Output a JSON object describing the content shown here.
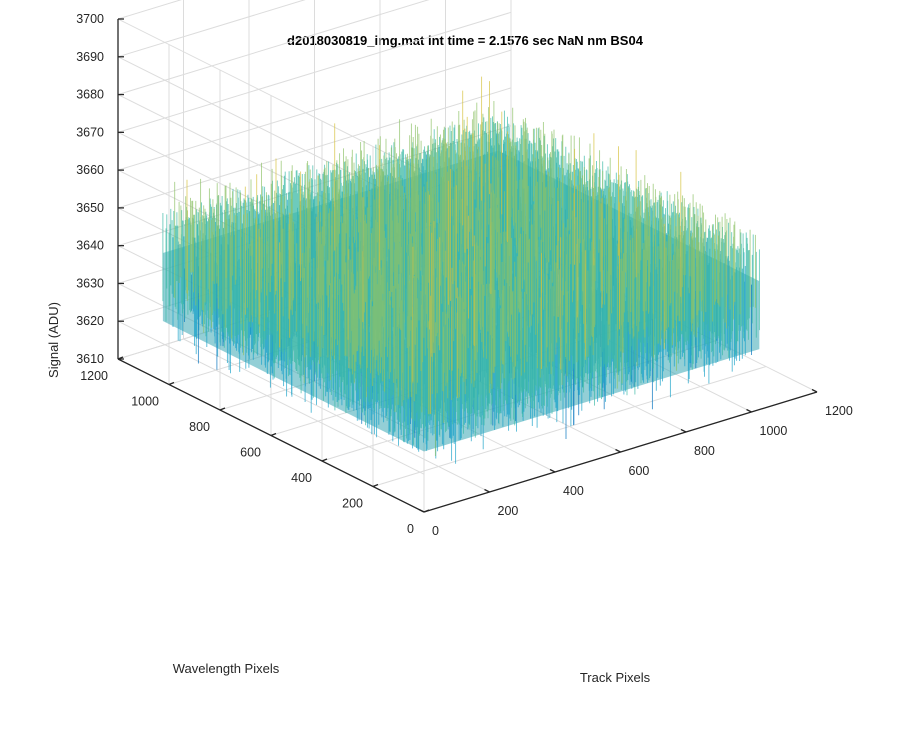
{
  "chart_data": {
    "type": "surface",
    "title": "d2018030819_img.mat int time = 2.1576 sec  NaN nm BS04",
    "xlabel": "Track Pixels",
    "ylabel": "Wavelength Pixels",
    "zlabel": "Signal (ADU)",
    "xlim": [
      0,
      1200
    ],
    "ylim": [
      0,
      1200
    ],
    "zlim": [
      3610,
      3700
    ],
    "xticks": [
      0,
      200,
      400,
      600,
      800,
      1000,
      1200
    ],
    "yticks": [
      0,
      200,
      400,
      600,
      800,
      1000,
      1200
    ],
    "zticks": [
      3610,
      3620,
      3630,
      3640,
      3650,
      3660,
      3670,
      3680,
      3690,
      3700
    ],
    "xtick_labels": [
      "0",
      "200",
      "400",
      "600",
      "800",
      "1000",
      "1200"
    ],
    "ytick_labels": [
      "0",
      "200",
      "400",
      "600",
      "800",
      "1000",
      "1200"
    ],
    "ztick_labels": [
      "3610",
      "3620",
      "3630",
      "3640",
      "3650",
      "3660",
      "3670",
      "3680",
      "3690",
      "3700"
    ],
    "data_extent": {
      "x": [
        0,
        1024
      ],
      "y": [
        0,
        1024
      ]
    },
    "signal": {
      "mean": 3644,
      "min": 3612,
      "max": 3690
    },
    "colormap": [
      "#0072bd",
      "#1aa1c8",
      "#3cb9a6",
      "#8ec267",
      "#d6c23e",
      "#ecd23c"
    ],
    "grid": true,
    "view": "3D perspective"
  }
}
